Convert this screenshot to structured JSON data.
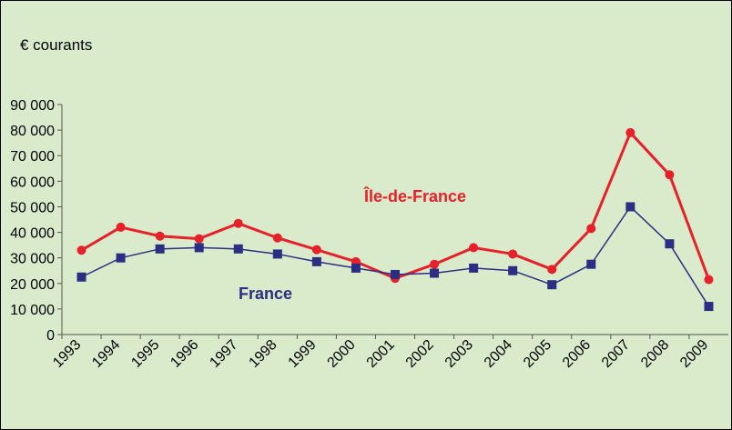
{
  "chart_data": {
    "type": "line",
    "y_label": "€ courants",
    "categories": [
      "1993",
      "1994",
      "1995",
      "1996",
      "1997",
      "1998",
      "1999",
      "2000",
      "2001",
      "2002",
      "2003",
      "2004",
      "2005",
      "2006",
      "2007",
      "2008",
      "2009"
    ],
    "series": [
      {
        "name": "Île-de-France",
        "color": "#e8202a",
        "marker": "circle",
        "values": [
          33000,
          42000,
          38500,
          37500,
          43500,
          37800,
          33200,
          28500,
          22000,
          27500,
          34000,
          31500,
          25500,
          41500,
          79000,
          62500,
          21500
        ]
      },
      {
        "name": "France",
        "color": "#2b2e83",
        "marker": "square",
        "values": [
          22500,
          30000,
          33500,
          34000,
          33500,
          31500,
          28500,
          26000,
          23500,
          24000,
          26000,
          25000,
          19500,
          27500,
          50000,
          35500,
          11000
        ]
      }
    ],
    "ylim": [
      0,
      90000
    ],
    "yticks": [
      0,
      {
        "value": 10000,
        "label": "10 000"
      },
      {
        "value": 20000,
        "label": "20 000"
      },
      {
        "value": 30000,
        "label": "30 000"
      },
      {
        "value": 40000,
        "label": "40 000"
      },
      {
        "value": 50000,
        "label": "50 000"
      },
      {
        "value": 60000,
        "label": "60 000"
      },
      {
        "value": 70000,
        "label": "70 000"
      },
      {
        "value": 80000,
        "label": "80 000"
      },
      {
        "value": 90000,
        "label": "90 000"
      }
    ],
    "background": "#d9ebcb"
  }
}
